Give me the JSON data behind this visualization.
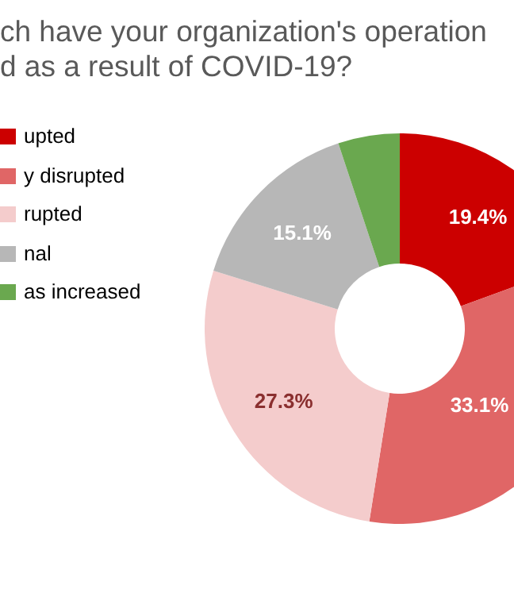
{
  "chart_data": {
    "type": "donut",
    "title": "ch have your organization's operation\nd as a result of COVID-19?",
    "categories": [
      "upted",
      "y disrupted",
      "rupted",
      "nal",
      "as increased"
    ],
    "values": [
      19.4,
      33.1,
      27.3,
      15.1,
      5.1
    ],
    "colors": [
      "#cc0000",
      "#e06666",
      "#f4cccc",
      "#b7b7b7",
      "#6aa84f"
    ],
    "value_labels": [
      "19.4%",
      "33.1%",
      "27.3%",
      "15.1%",
      null
    ],
    "legend": "left"
  }
}
